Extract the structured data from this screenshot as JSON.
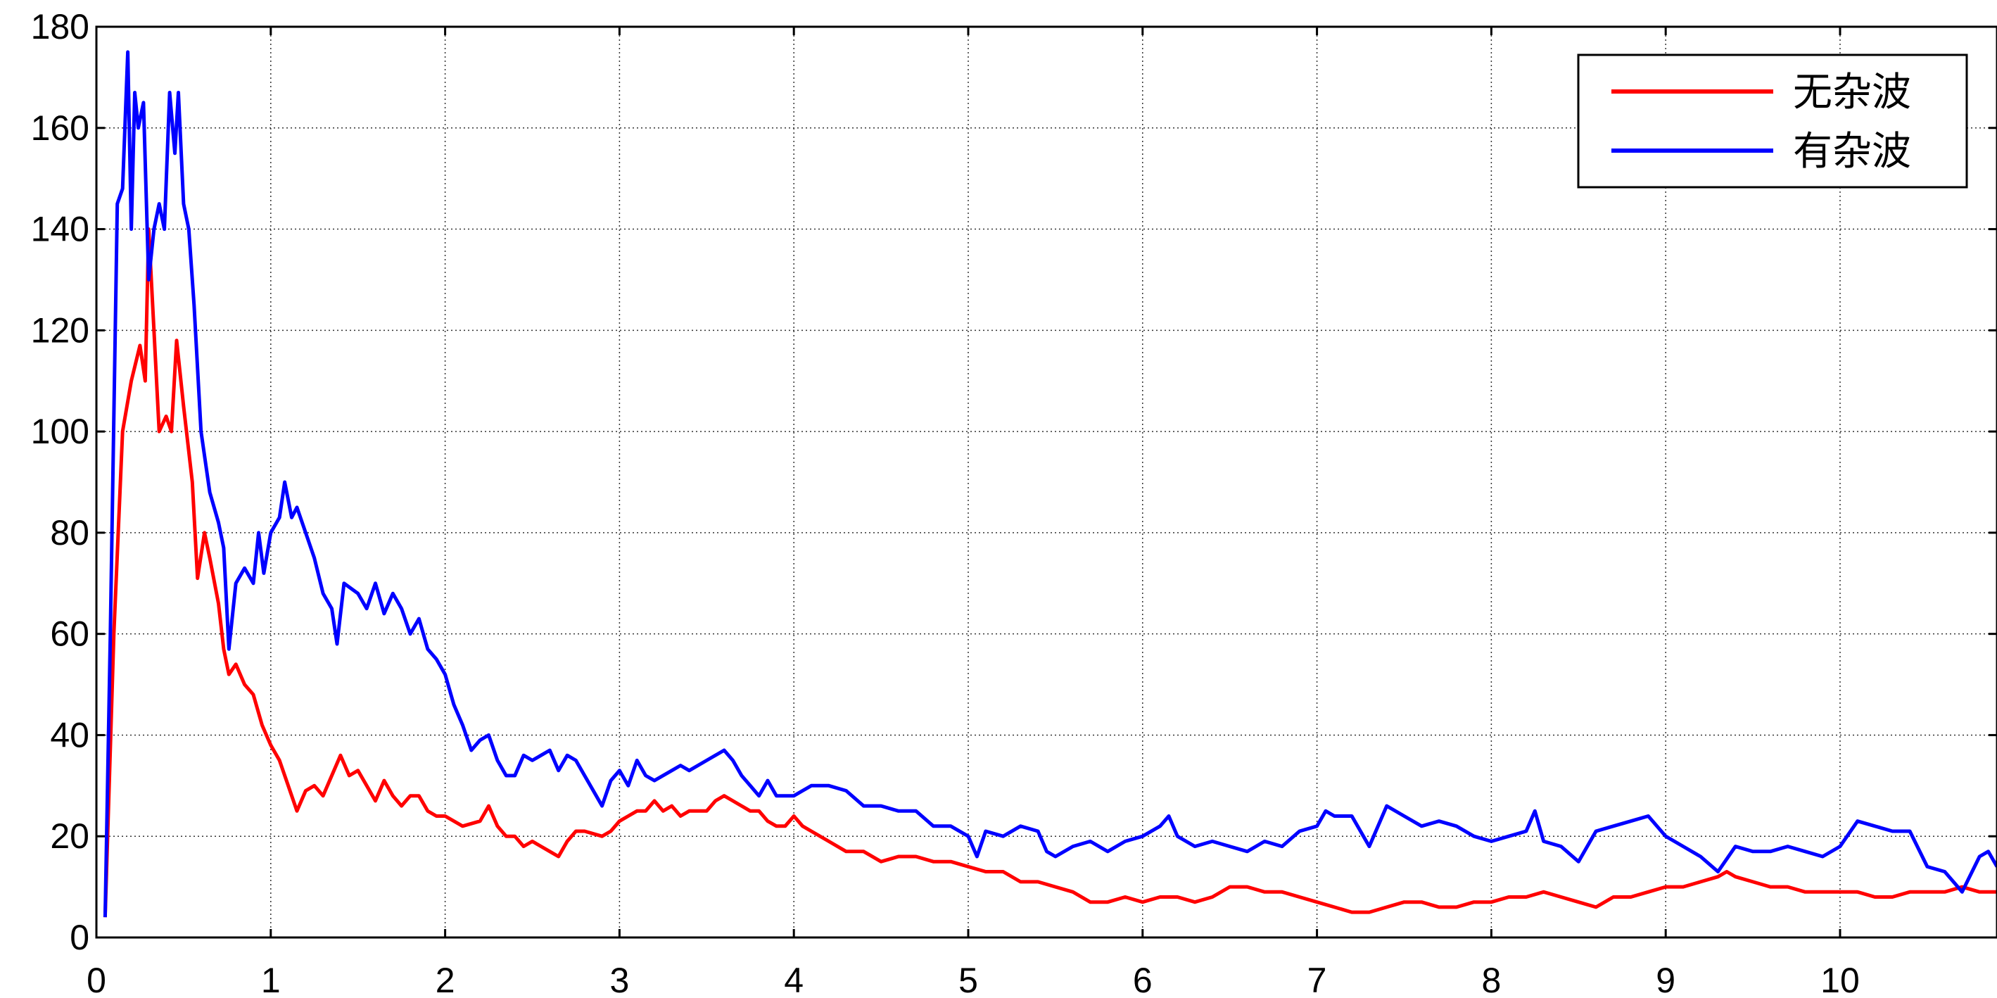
{
  "chart_data": {
    "type": "line",
    "title": "",
    "xlabel": "",
    "ylabel": "",
    "xlim": [
      0,
      10.9
    ],
    "ylim": [
      0,
      180
    ],
    "grid": true,
    "legend_position": "top-right",
    "x_ticks": [
      "0",
      "1",
      "2",
      "3",
      "4",
      "5",
      "6",
      "7",
      "8",
      "9",
      "10"
    ],
    "y_ticks": [
      "0",
      "20",
      "40",
      "60",
      "80",
      "100",
      "120",
      "140",
      "160",
      "180"
    ],
    "series": [
      {
        "name": "无杂波",
        "color": "#ff0000",
        "points": [
          [
            0.05,
            4
          ],
          [
            0.1,
            60
          ],
          [
            0.15,
            100
          ],
          [
            0.2,
            110
          ],
          [
            0.25,
            117
          ],
          [
            0.28,
            110
          ],
          [
            0.3,
            140
          ],
          [
            0.33,
            120
          ],
          [
            0.36,
            100
          ],
          [
            0.4,
            103
          ],
          [
            0.43,
            100
          ],
          [
            0.46,
            118
          ],
          [
            0.5,
            105
          ],
          [
            0.55,
            90
          ],
          [
            0.58,
            71
          ],
          [
            0.62,
            80
          ],
          [
            0.65,
            75
          ],
          [
            0.7,
            66
          ],
          [
            0.73,
            57
          ],
          [
            0.76,
            52
          ],
          [
            0.8,
            54
          ],
          [
            0.85,
            50
          ],
          [
            0.9,
            48
          ],
          [
            0.95,
            42
          ],
          [
            1.0,
            38
          ],
          [
            1.05,
            35
          ],
          [
            1.1,
            30
          ],
          [
            1.15,
            25
          ],
          [
            1.2,
            29
          ],
          [
            1.25,
            30
          ],
          [
            1.3,
            28
          ],
          [
            1.35,
            32
          ],
          [
            1.4,
            36
          ],
          [
            1.45,
            32
          ],
          [
            1.5,
            33
          ],
          [
            1.55,
            30
          ],
          [
            1.6,
            27
          ],
          [
            1.65,
            31
          ],
          [
            1.7,
            28
          ],
          [
            1.75,
            26
          ],
          [
            1.8,
            28
          ],
          [
            1.85,
            28
          ],
          [
            1.9,
            25
          ],
          [
            1.95,
            24
          ],
          [
            2.0,
            24
          ],
          [
            2.1,
            22
          ],
          [
            2.2,
            23
          ],
          [
            2.25,
            26
          ],
          [
            2.3,
            22
          ],
          [
            2.35,
            20
          ],
          [
            2.4,
            20
          ],
          [
            2.45,
            18
          ],
          [
            2.5,
            19
          ],
          [
            2.55,
            18
          ],
          [
            2.6,
            17
          ],
          [
            2.65,
            16
          ],
          [
            2.7,
            19
          ],
          [
            2.75,
            21
          ],
          [
            2.8,
            21
          ],
          [
            2.9,
            20
          ],
          [
            2.95,
            21
          ],
          [
            3.0,
            23
          ],
          [
            3.05,
            24
          ],
          [
            3.1,
            25
          ],
          [
            3.15,
            25
          ],
          [
            3.2,
            27
          ],
          [
            3.25,
            25
          ],
          [
            3.3,
            26
          ],
          [
            3.35,
            24
          ],
          [
            3.4,
            25
          ],
          [
            3.5,
            25
          ],
          [
            3.55,
            27
          ],
          [
            3.6,
            28
          ],
          [
            3.65,
            27
          ],
          [
            3.7,
            26
          ],
          [
            3.75,
            25
          ],
          [
            3.8,
            25
          ],
          [
            3.85,
            23
          ],
          [
            3.9,
            22
          ],
          [
            3.95,
            22
          ],
          [
            4.0,
            24
          ],
          [
            4.05,
            22
          ],
          [
            4.1,
            21
          ],
          [
            4.2,
            19
          ],
          [
            4.3,
            17
          ],
          [
            4.4,
            17
          ],
          [
            4.5,
            15
          ],
          [
            4.6,
            16
          ],
          [
            4.7,
            16
          ],
          [
            4.8,
            15
          ],
          [
            4.9,
            15
          ],
          [
            5.0,
            14
          ],
          [
            5.1,
            13
          ],
          [
            5.2,
            13
          ],
          [
            5.3,
            11
          ],
          [
            5.4,
            11
          ],
          [
            5.5,
            10
          ],
          [
            5.6,
            9
          ],
          [
            5.7,
            7
          ],
          [
            5.8,
            7
          ],
          [
            5.9,
            8
          ],
          [
            6.0,
            7
          ],
          [
            6.1,
            8
          ],
          [
            6.2,
            8
          ],
          [
            6.3,
            7
          ],
          [
            6.4,
            8
          ],
          [
            6.5,
            10
          ],
          [
            6.6,
            10
          ],
          [
            6.7,
            9
          ],
          [
            6.8,
            9
          ],
          [
            6.9,
            8
          ],
          [
            7.0,
            7
          ],
          [
            7.1,
            6
          ],
          [
            7.2,
            5
          ],
          [
            7.3,
            5
          ],
          [
            7.4,
            6
          ],
          [
            7.5,
            7
          ],
          [
            7.6,
            7
          ],
          [
            7.7,
            6
          ],
          [
            7.8,
            6
          ],
          [
            7.9,
            7
          ],
          [
            8.0,
            7
          ],
          [
            8.1,
            8
          ],
          [
            8.2,
            8
          ],
          [
            8.3,
            9
          ],
          [
            8.4,
            8
          ],
          [
            8.5,
            7
          ],
          [
            8.6,
            6
          ],
          [
            8.7,
            8
          ],
          [
            8.8,
            8
          ],
          [
            8.9,
            9
          ],
          [
            9.0,
            10
          ],
          [
            9.1,
            10
          ],
          [
            9.2,
            11
          ],
          [
            9.3,
            12
          ],
          [
            9.35,
            13
          ],
          [
            9.4,
            12
          ],
          [
            9.5,
            11
          ],
          [
            9.6,
            10
          ],
          [
            9.7,
            10
          ],
          [
            9.8,
            9
          ],
          [
            9.9,
            9
          ],
          [
            10.0,
            9
          ],
          [
            10.1,
            9
          ],
          [
            10.2,
            8
          ],
          [
            10.3,
            8
          ],
          [
            10.4,
            9
          ],
          [
            10.5,
            9
          ],
          [
            10.6,
            9
          ],
          [
            10.7,
            10
          ],
          [
            10.8,
            9
          ],
          [
            10.9,
            9
          ]
        ]
      },
      {
        "name": "有杂波",
        "color": "#0000ff",
        "points": [
          [
            0.05,
            4
          ],
          [
            0.08,
            60
          ],
          [
            0.12,
            145
          ],
          [
            0.15,
            148
          ],
          [
            0.18,
            175
          ],
          [
            0.2,
            140
          ],
          [
            0.22,
            167
          ],
          [
            0.24,
            160
          ],
          [
            0.27,
            165
          ],
          [
            0.3,
            130
          ],
          [
            0.33,
            140
          ],
          [
            0.36,
            145
          ],
          [
            0.39,
            140
          ],
          [
            0.42,
            167
          ],
          [
            0.45,
            155
          ],
          [
            0.47,
            167
          ],
          [
            0.5,
            145
          ],
          [
            0.53,
            140
          ],
          [
            0.56,
            125
          ],
          [
            0.6,
            100
          ],
          [
            0.65,
            88
          ],
          [
            0.7,
            82
          ],
          [
            0.73,
            77
          ],
          [
            0.76,
            57
          ],
          [
            0.8,
            70
          ],
          [
            0.85,
            73
          ],
          [
            0.9,
            70
          ],
          [
            0.93,
            80
          ],
          [
            0.96,
            72
          ],
          [
            1.0,
            80
          ],
          [
            1.05,
            83
          ],
          [
            1.08,
            90
          ],
          [
            1.12,
            83
          ],
          [
            1.15,
            85
          ],
          [
            1.2,
            80
          ],
          [
            1.25,
            75
          ],
          [
            1.3,
            68
          ],
          [
            1.35,
            65
          ],
          [
            1.38,
            58
          ],
          [
            1.42,
            70
          ],
          [
            1.5,
            68
          ],
          [
            1.55,
            65
          ],
          [
            1.6,
            70
          ],
          [
            1.65,
            64
          ],
          [
            1.7,
            68
          ],
          [
            1.75,
            65
          ],
          [
            1.8,
            60
          ],
          [
            1.85,
            63
          ],
          [
            1.9,
            57
          ],
          [
            1.95,
            55
          ],
          [
            2.0,
            52
          ],
          [
            2.05,
            46
          ],
          [
            2.1,
            42
          ],
          [
            2.15,
            37
          ],
          [
            2.2,
            39
          ],
          [
            2.25,
            40
          ],
          [
            2.3,
            35
          ],
          [
            2.35,
            32
          ],
          [
            2.4,
            32
          ],
          [
            2.45,
            36
          ],
          [
            2.5,
            35
          ],
          [
            2.55,
            36
          ],
          [
            2.6,
            37
          ],
          [
            2.65,
            33
          ],
          [
            2.7,
            36
          ],
          [
            2.75,
            35
          ],
          [
            2.8,
            32
          ],
          [
            2.85,
            29
          ],
          [
            2.9,
            26
          ],
          [
            2.95,
            31
          ],
          [
            3.0,
            33
          ],
          [
            3.05,
            30
          ],
          [
            3.1,
            35
          ],
          [
            3.15,
            32
          ],
          [
            3.2,
            31
          ],
          [
            3.3,
            33
          ],
          [
            3.35,
            34
          ],
          [
            3.4,
            33
          ],
          [
            3.5,
            35
          ],
          [
            3.6,
            37
          ],
          [
            3.65,
            35
          ],
          [
            3.7,
            32
          ],
          [
            3.75,
            30
          ],
          [
            3.8,
            28
          ],
          [
            3.85,
            31
          ],
          [
            3.9,
            28
          ],
          [
            4.0,
            28
          ],
          [
            4.1,
            30
          ],
          [
            4.2,
            30
          ],
          [
            4.3,
            29
          ],
          [
            4.4,
            26
          ],
          [
            4.5,
            26
          ],
          [
            4.6,
            25
          ],
          [
            4.7,
            25
          ],
          [
            4.8,
            22
          ],
          [
            4.9,
            22
          ],
          [
            5.0,
            20
          ],
          [
            5.05,
            16
          ],
          [
            5.1,
            21
          ],
          [
            5.2,
            20
          ],
          [
            5.3,
            22
          ],
          [
            5.4,
            21
          ],
          [
            5.45,
            17
          ],
          [
            5.5,
            16
          ],
          [
            5.6,
            18
          ],
          [
            5.7,
            19
          ],
          [
            5.8,
            17
          ],
          [
            5.9,
            19
          ],
          [
            6.0,
            20
          ],
          [
            6.1,
            22
          ],
          [
            6.15,
            24
          ],
          [
            6.2,
            20
          ],
          [
            6.3,
            18
          ],
          [
            6.4,
            19
          ],
          [
            6.5,
            18
          ],
          [
            6.6,
            17
          ],
          [
            6.7,
            19
          ],
          [
            6.8,
            18
          ],
          [
            6.9,
            21
          ],
          [
            7.0,
            22
          ],
          [
            7.05,
            25
          ],
          [
            7.1,
            24
          ],
          [
            7.2,
            24
          ],
          [
            7.3,
            18
          ],
          [
            7.4,
            26
          ],
          [
            7.5,
            24
          ],
          [
            7.6,
            22
          ],
          [
            7.7,
            23
          ],
          [
            7.8,
            22
          ],
          [
            7.9,
            20
          ],
          [
            8.0,
            19
          ],
          [
            8.1,
            20
          ],
          [
            8.2,
            21
          ],
          [
            8.25,
            25
          ],
          [
            8.3,
            19
          ],
          [
            8.4,
            18
          ],
          [
            8.5,
            15
          ],
          [
            8.6,
            21
          ],
          [
            8.7,
            22
          ],
          [
            8.8,
            23
          ],
          [
            8.9,
            24
          ],
          [
            9.0,
            20
          ],
          [
            9.1,
            18
          ],
          [
            9.2,
            16
          ],
          [
            9.3,
            13
          ],
          [
            9.4,
            18
          ],
          [
            9.5,
            17
          ],
          [
            9.6,
            17
          ],
          [
            9.7,
            18
          ],
          [
            9.8,
            17
          ],
          [
            9.9,
            16
          ],
          [
            10.0,
            18
          ],
          [
            10.1,
            23
          ],
          [
            10.2,
            22
          ],
          [
            10.3,
            21
          ],
          [
            10.4,
            21
          ],
          [
            10.5,
            14
          ],
          [
            10.6,
            13
          ],
          [
            10.65,
            11
          ],
          [
            10.7,
            9
          ],
          [
            10.8,
            16
          ],
          [
            10.85,
            17
          ],
          [
            10.9,
            14
          ]
        ]
      }
    ]
  }
}
